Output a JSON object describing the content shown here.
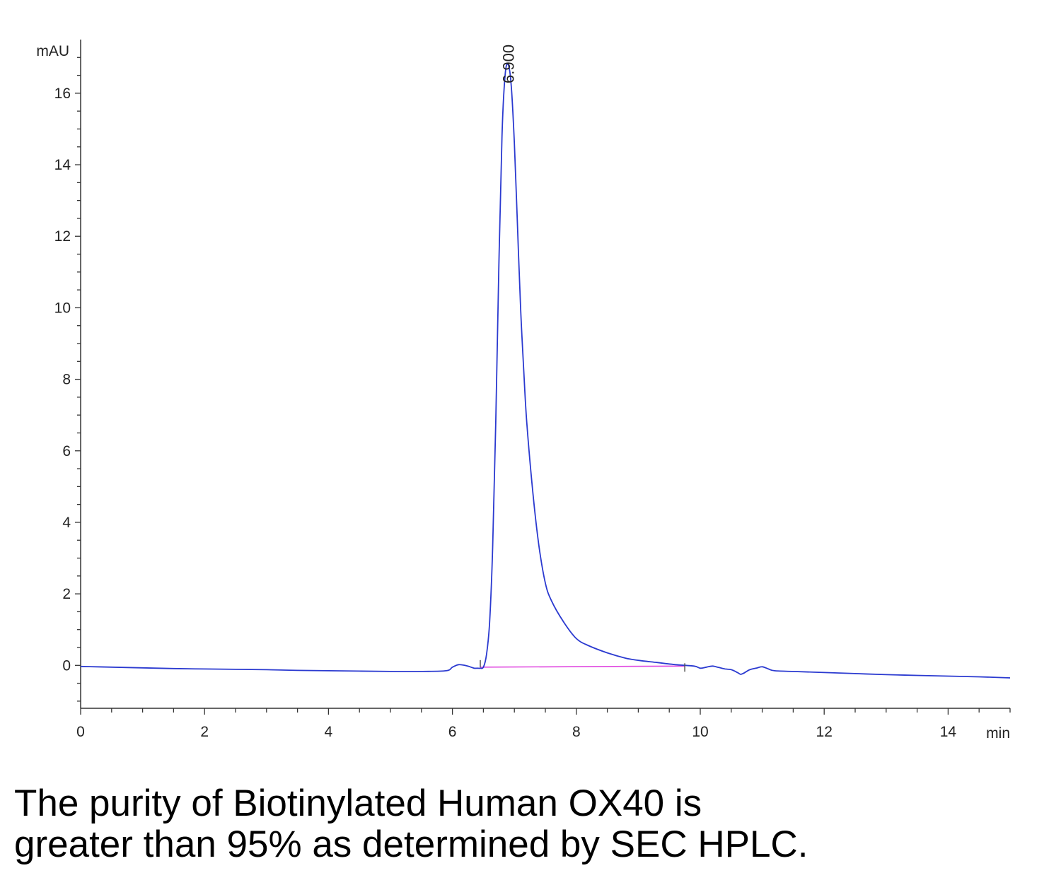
{
  "chart_data": {
    "type": "line",
    "y_unit": "mAU",
    "x_unit": "min",
    "xlim": [
      0,
      15
    ],
    "ylim": [
      -1.2,
      17.5
    ],
    "x_ticks": [
      0,
      2,
      4,
      6,
      8,
      10,
      12,
      14
    ],
    "y_ticks": [
      0,
      2,
      4,
      6,
      8,
      10,
      12,
      14,
      16
    ],
    "peak_label": "6.900",
    "peak_x": 6.9,
    "baseline": {
      "x": [
        6.45,
        9.75
      ],
      "y": [
        -0.05,
        -0.02
      ]
    },
    "series": [
      {
        "x": [
          0,
          0.5,
          1,
          1.5,
          2,
          2.5,
          3,
          3.5,
          4,
          4.5,
          5,
          5.5,
          5.9,
          6.0,
          6.1,
          6.2,
          6.3,
          6.35,
          6.4,
          6.45,
          6.5,
          6.55,
          6.6,
          6.65,
          6.7,
          6.75,
          6.8,
          6.85,
          6.9,
          6.95,
          7.0,
          7.05,
          7.1,
          7.15,
          7.2,
          7.3,
          7.4,
          7.5,
          7.6,
          7.8,
          8.0,
          8.2,
          8.5,
          8.8,
          9.0,
          9.3,
          9.6,
          9.9,
          10.0,
          10.1,
          10.2,
          10.3,
          10.4,
          10.5,
          10.6,
          10.65,
          10.7,
          10.8,
          10.9,
          11.0,
          11.1,
          11.2,
          11.5,
          12.0,
          12.5,
          13.0,
          13.5,
          14.0,
          14.5,
          15.0
        ],
        "y": [
          -0.03,
          -0.05,
          -0.07,
          -0.09,
          -0.1,
          -0.11,
          -0.12,
          -0.14,
          -0.15,
          -0.16,
          -0.17,
          -0.17,
          -0.15,
          -0.05,
          0.02,
          0.0,
          -0.05,
          -0.08,
          -0.08,
          -0.08,
          -0.05,
          0.3,
          1.2,
          3.3,
          6.8,
          11.2,
          14.8,
          16.5,
          16.8,
          16.2,
          14.6,
          12.3,
          10.0,
          8.3,
          6.8,
          4.8,
          3.3,
          2.3,
          1.8,
          1.2,
          0.75,
          0.55,
          0.35,
          0.2,
          0.14,
          0.08,
          0.02,
          -0.02,
          -0.08,
          -0.05,
          -0.02,
          -0.06,
          -0.1,
          -0.12,
          -0.2,
          -0.25,
          -0.22,
          -0.12,
          -0.08,
          -0.04,
          -0.1,
          -0.15,
          -0.17,
          -0.2,
          -0.23,
          -0.26,
          -0.28,
          -0.3,
          -0.32,
          -0.35
        ]
      }
    ]
  },
  "caption": {
    "line1": "The purity of Biotinylated Human OX40 is",
    "line2": "greater than 95% as determined by SEC HPLC."
  },
  "colors": {
    "trace": "#2b3ad0",
    "baseline": "#e048e0",
    "axis": "#333333"
  }
}
